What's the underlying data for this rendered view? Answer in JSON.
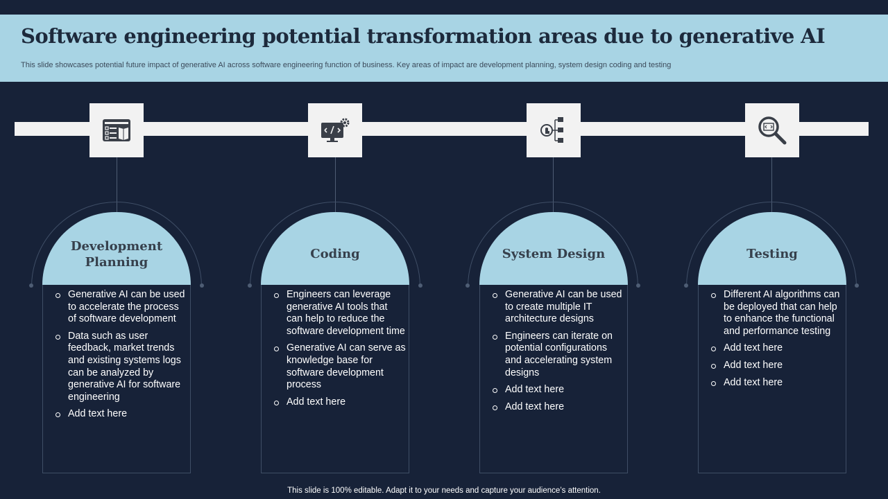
{
  "header": {
    "title": "Software engineering potential transformation areas due to generative AI",
    "subtitle": "This slide showcases potential future impact of generative AI across software engineering function of business. Key areas of impact are development planning, system design coding and testing"
  },
  "cards": [
    {
      "icon": "planning-checklist-icon",
      "title_lines": [
        "Development",
        "Planning"
      ],
      "bullets": [
        "Generative AI can be used to accelerate the process of software development",
        "Data such as user feedback, market trends and existing systems logs can be analyzed by generative AI for software engineering",
        "Add text here"
      ]
    },
    {
      "icon": "code-monitor-gear-icon",
      "title_lines": [
        "Coding"
      ],
      "bullets": [
        "Engineers can leverage generative AI tools that can help to reduce the software development time",
        "Generative AI can serve as knowledge base for software development process",
        "Add text here"
      ]
    },
    {
      "icon": "system-hierarchy-icon",
      "title_lines": [
        "System Design"
      ],
      "bullets": [
        "Generative AI can be used to create multiple IT architecture designs",
        "Engineers can iterate on potential configurations and accelerating system designs",
        "Add text here",
        "Add text here"
      ]
    },
    {
      "icon": "code-magnifier-icon",
      "title_lines": [
        "Testing"
      ],
      "bullets": [
        "Different AI algorithms can be deployed that can help to enhance the functional and performance testing",
        "Add text here",
        "Add text here",
        "Add text here"
      ]
    }
  ],
  "footer": {
    "text": "This slide is 100% editable. Adapt it to your needs and capture your audience’s attention."
  },
  "colors": {
    "background": "#172238",
    "header_band": "#a8d4e4",
    "card_cap": "#a8d4e4",
    "timeline": "#f2f2f2",
    "icon_dark": "#3a3f48"
  }
}
